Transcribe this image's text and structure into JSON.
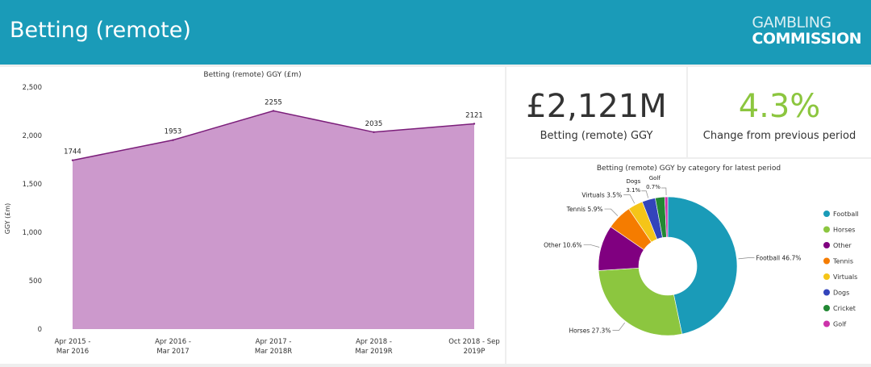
{
  "header": {
    "title": "Betting (remote)",
    "logo_line1": "GAMBLING",
    "logo_line2": "COMMISSION"
  },
  "kpis": [
    {
      "value": "£2,121M",
      "label": "Betting (remote) GGY",
      "color": "#333333"
    },
    {
      "value": "4.3%",
      "label": "Change from previous period",
      "color": "#8cc63f"
    }
  ],
  "chart_data": [
    {
      "type": "area",
      "title": "Betting (remote) GGY (£m)",
      "ylabel": "GGY (£m)",
      "xlabel": "",
      "categories": [
        [
          "Apr 2015 -",
          "Mar 2016"
        ],
        [
          "Apr 2016 -",
          "Mar 2017"
        ],
        [
          "Apr 2017 -",
          "Mar 2018R"
        ],
        [
          "Apr 2018 -",
          "Mar 2019R"
        ],
        [
          "Oct 2018 - Sep",
          "2019P"
        ]
      ],
      "values": [
        1744,
        1953,
        2255,
        2035,
        2121
      ],
      "data_labels": [
        "1744",
        "1953",
        "2255",
        "2035",
        "2121"
      ],
      "y_ticks": [
        "0",
        "500",
        "1,000",
        "1,500",
        "2,000",
        "2,500"
      ],
      "ylim": [
        0,
        2500
      ],
      "fill_color": "#cc99cc",
      "line_color": "#7b1e7a",
      "grid": false
    },
    {
      "type": "pie",
      "title": "Betting (remote) GGY by category for latest period",
      "donut": true,
      "legend_position": "right",
      "slices": [
        {
          "name": "Football",
          "value": 46.7,
          "label": "Football 46.7%",
          "color": "#1a9bb8"
        },
        {
          "name": "Horses",
          "value": 27.3,
          "label": "Horses 27.3%",
          "color": "#8cc63f"
        },
        {
          "name": "Other",
          "value": 10.6,
          "label": "Other 10.6%",
          "color": "#800080"
        },
        {
          "name": "Tennis",
          "value": 5.9,
          "label": "Tennis 5.9%",
          "color": "#f57c00"
        },
        {
          "name": "Virtuals",
          "value": 3.5,
          "label": "Virtuals 3.5%",
          "color": "#f5c518"
        },
        {
          "name": "Dogs",
          "value": 3.1,
          "label_top": "Dogs",
          "label_bottom": "3.1%",
          "color": "#3344bb"
        },
        {
          "name": "Cricket",
          "value": 2.2,
          "color": "#228833"
        },
        {
          "name": "Golf",
          "value": 0.7,
          "label_top": "Golf",
          "label_bottom": "0.7%",
          "color": "#cc33aa"
        }
      ]
    }
  ]
}
